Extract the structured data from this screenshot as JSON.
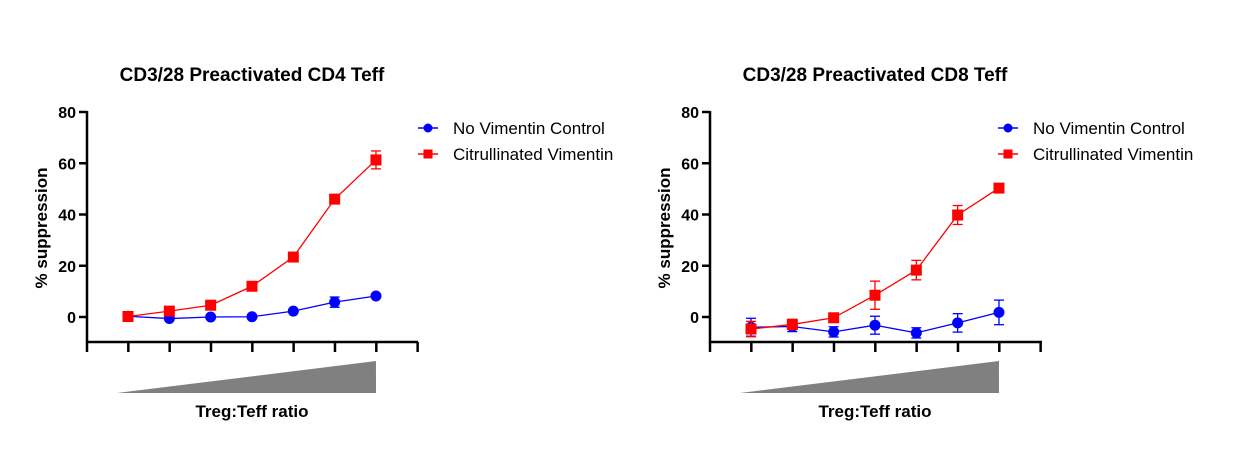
{
  "chart_data": [
    {
      "type": "line",
      "title": "CD3/28 Preactivated CD4 Teff",
      "xlabel": "Treg:Teff ratio",
      "ylabel": "% suppression",
      "ylim": [
        -10,
        80
      ],
      "yticks": [
        0,
        20,
        40,
        60,
        80
      ],
      "x": [
        1,
        2,
        3,
        4,
        5,
        6,
        7
      ],
      "x_annotation": "increasing ratio (gray wedge)",
      "legend_position": "right",
      "grid": false,
      "series": [
        {
          "name": "No Vimentin Control",
          "color": "#0000ff",
          "marker": "circle",
          "values": [
            0.3,
            -0.6,
            0.0,
            0.1,
            2.3,
            5.8,
            8.2
          ],
          "errors": [
            0.8,
            0.8,
            0.5,
            0.5,
            0.8,
            2.0,
            0.8
          ]
        },
        {
          "name": "Citrullinated  Vimentin",
          "color": "#ff0000",
          "marker": "square",
          "values": [
            0.2,
            2.3,
            4.6,
            12.0,
            23.4,
            46.0,
            61.3
          ],
          "errors": [
            0.5,
            0.8,
            0.8,
            0.8,
            0.8,
            0.8,
            3.5
          ]
        }
      ]
    },
    {
      "type": "line",
      "title": "CD3/28 Preactivated CD8 Teff",
      "xlabel": "Treg:Teff ratio",
      "ylabel": "% suppression",
      "ylim": [
        -10,
        80
      ],
      "yticks": [
        0,
        20,
        40,
        60,
        80
      ],
      "x": [
        1,
        2,
        3,
        4,
        5,
        6,
        7
      ],
      "x_annotation": "increasing ratio (gray wedge)",
      "legend_position": "top-right",
      "grid": false,
      "series": [
        {
          "name": "No Vimentin Control",
          "color": "#0000ff",
          "marker": "circle",
          "values": [
            -4.0,
            -3.7,
            -5.8,
            -3.2,
            -6.2,
            -2.3,
            1.8
          ],
          "errors": [
            3.5,
            2.0,
            2.0,
            3.5,
            2.0,
            3.6,
            4.8
          ]
        },
        {
          "name": "Citrullinated  Vimentin",
          "color": "#ff0000",
          "marker": "square",
          "values": [
            -4.7,
            -2.9,
            -0.3,
            8.5,
            18.3,
            39.8,
            50.3
          ],
          "errors": [
            3.0,
            2.0,
            0.8,
            5.5,
            3.8,
            3.7,
            0.8
          ]
        }
      ]
    }
  ]
}
